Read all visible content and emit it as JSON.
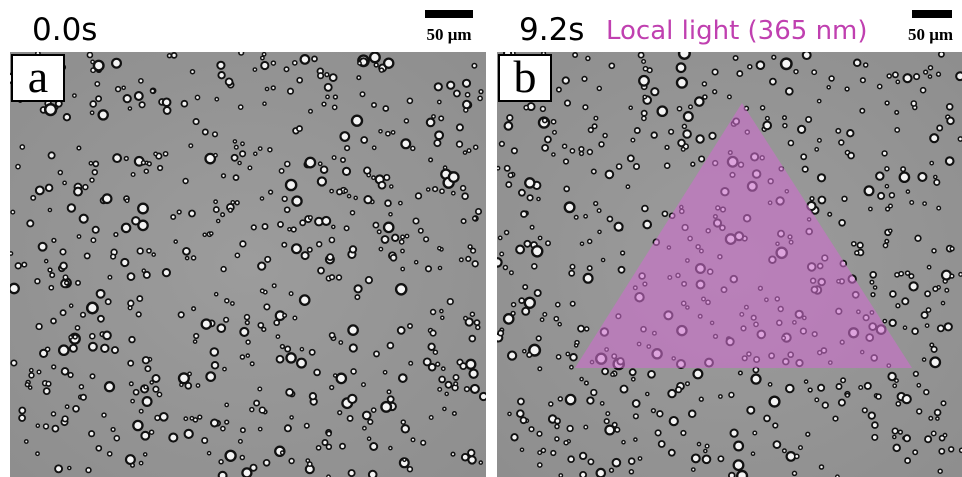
{
  "panels": [
    {
      "time": "0.0s",
      "scale_bar": "50 μm",
      "label": "a"
    },
    {
      "time": "9.2s",
      "annotation": "Local light (365 nm)",
      "scale_bar": "50 μm",
      "label": "b"
    }
  ]
}
